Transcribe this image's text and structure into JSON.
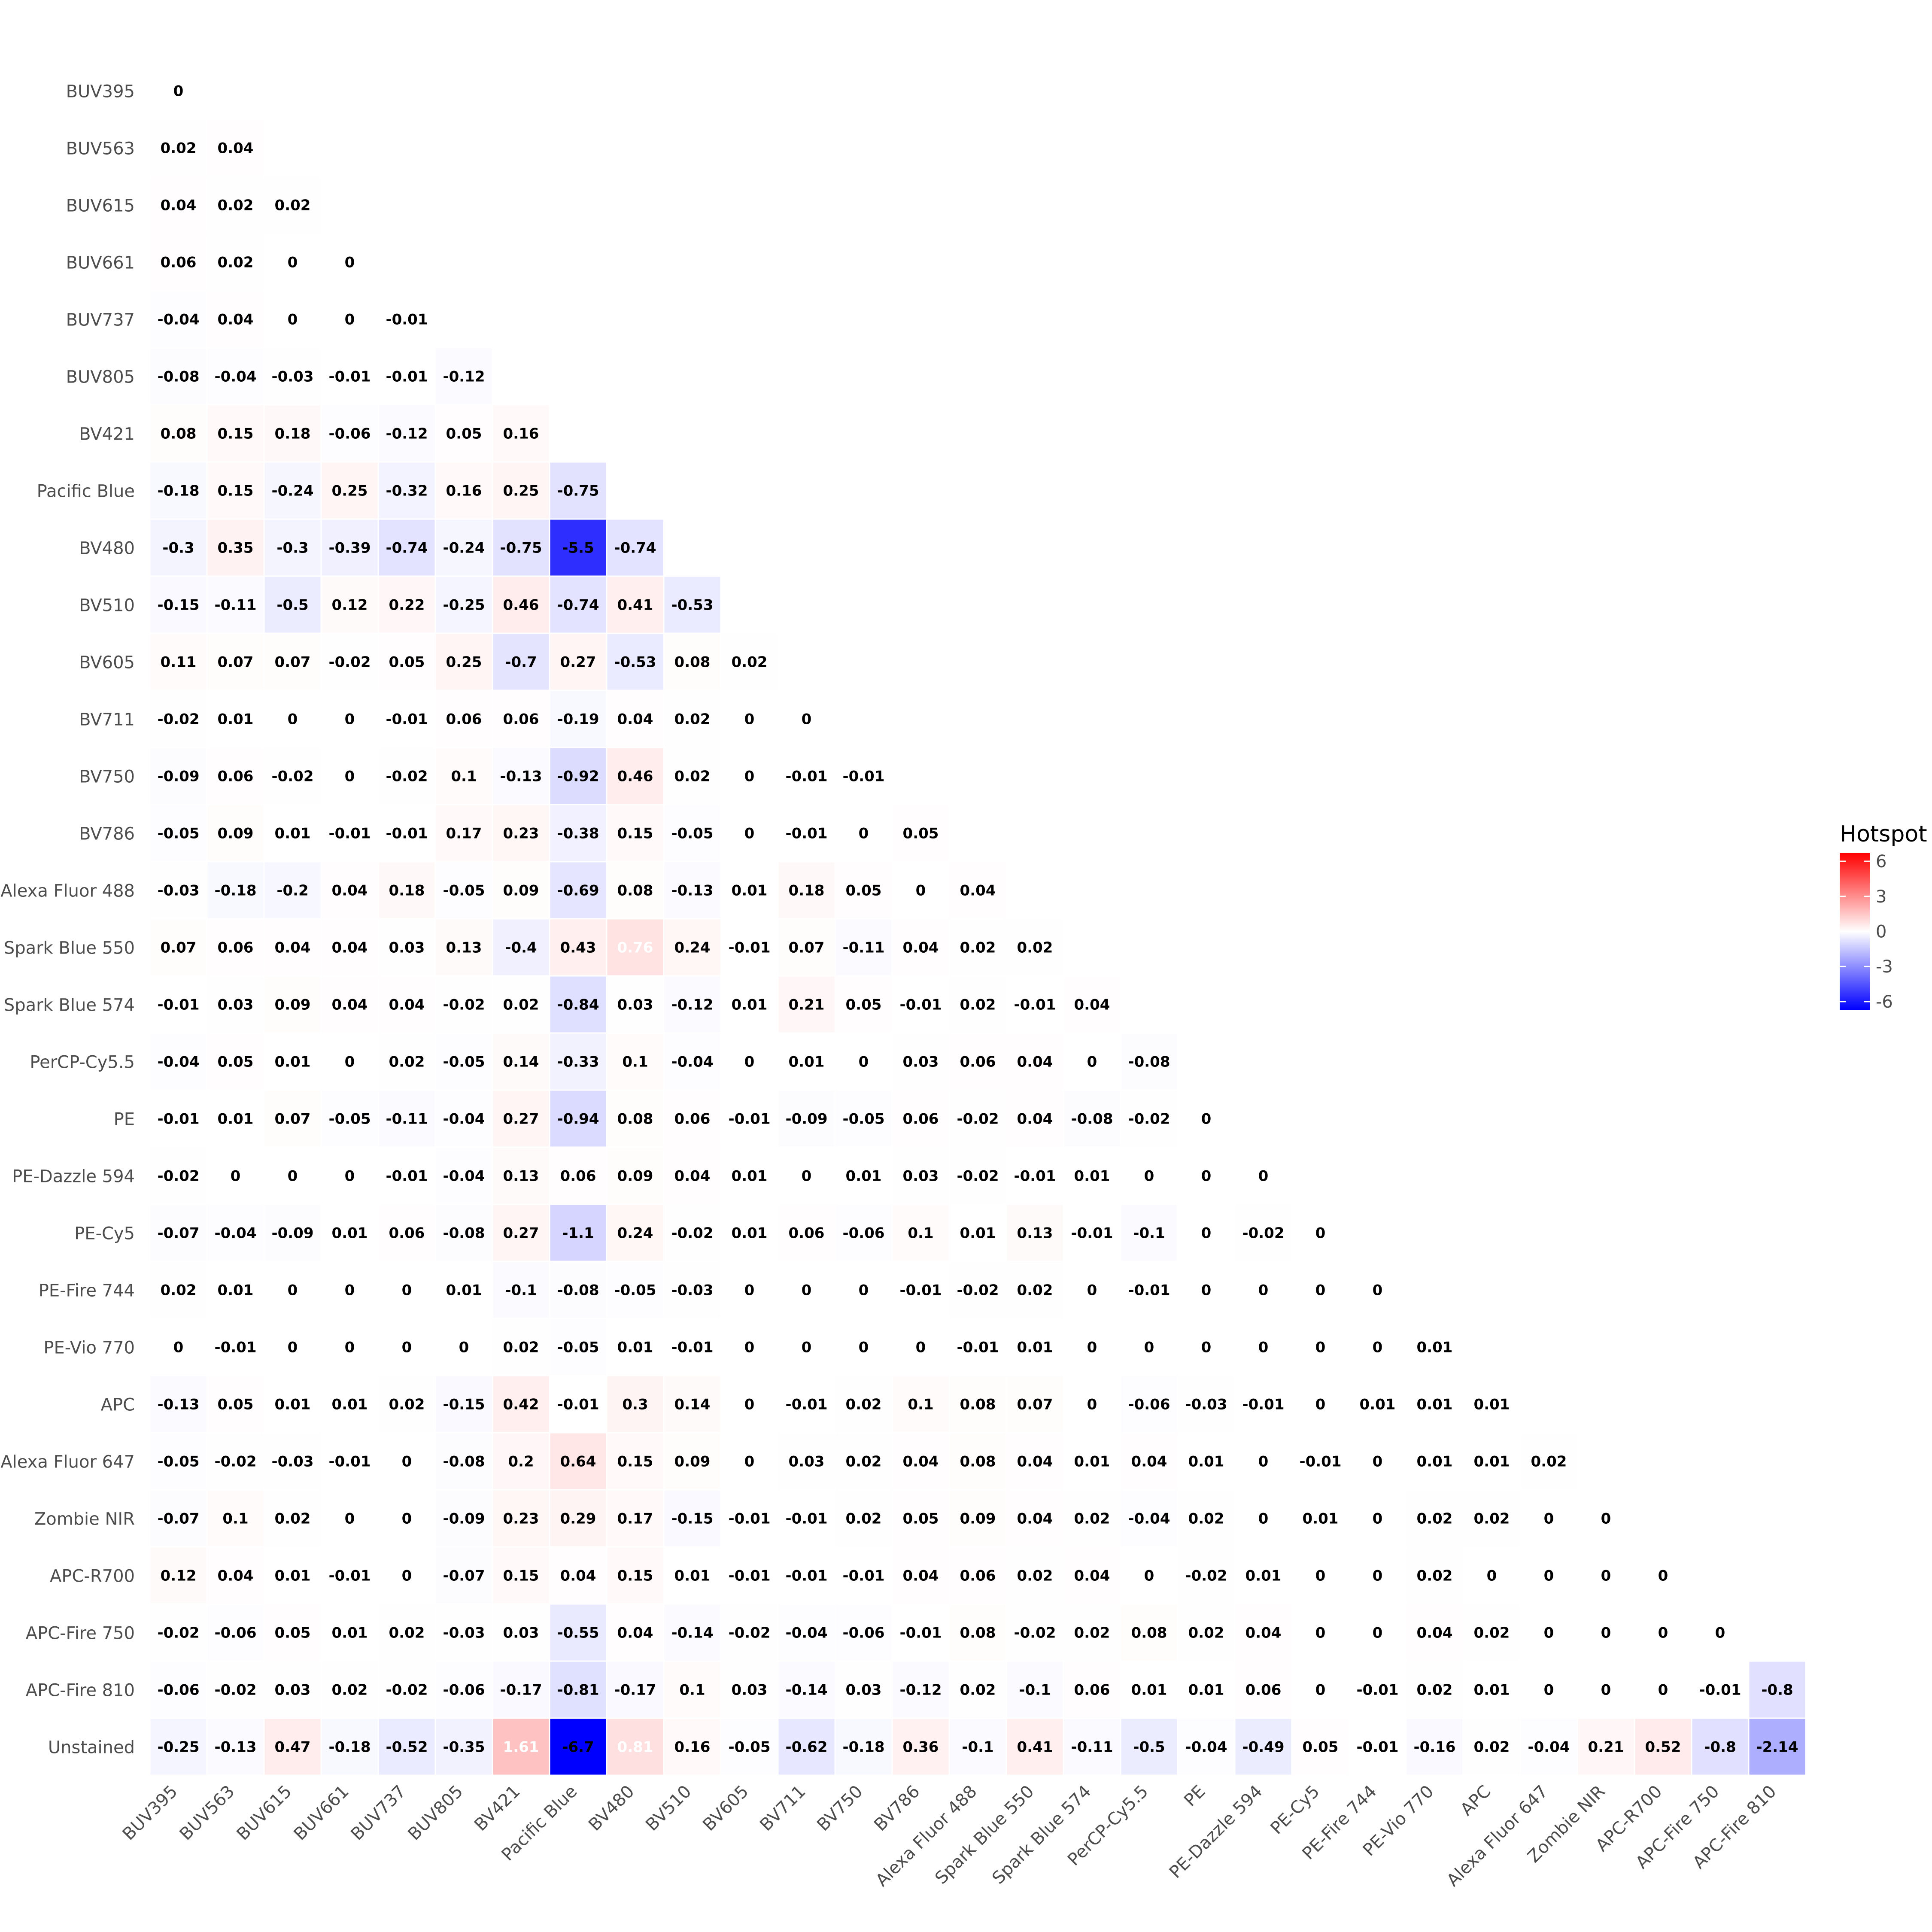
{
  "chart_data": {
    "type": "heatmap",
    "title": "",
    "xlabel": "",
    "ylabel": "",
    "labels": [
      "BUV395",
      "BUV563",
      "BUV615",
      "BUV661",
      "BUV737",
      "BUV805",
      "BV421",
      "Pacific Blue",
      "BV480",
      "BV510",
      "BV605",
      "BV711",
      "BV750",
      "BV786",
      "Alexa Fluor 488",
      "Spark Blue 550",
      "Spark Blue 574",
      "PerCP-Cy5.5",
      "PE",
      "PE-Dazzle 594",
      "PE-Cy5",
      "PE-Fire 744",
      "PE-Vio 770",
      "APC",
      "Alexa Fluor 647",
      "Zombie NIR",
      "APC-R700",
      "APC-Fire 750",
      "APC-Fire 810",
      "Unstained"
    ],
    "x_labels": [
      "BUV395",
      "BUV563",
      "BUV615",
      "BUV661",
      "BUV737",
      "BUV805",
      "BV421",
      "Pacific Blue",
      "BV480",
      "BV510",
      "BV605",
      "BV711",
      "BV750",
      "BV786",
      "Alexa Fluor 488",
      "Spark Blue 550",
      "Spark Blue 574",
      "PerCP-Cy5.5",
      "PE",
      "PE-Dazzle 594",
      "PE-Cy5",
      "PE-Fire 744",
      "PE-Vio 770",
      "APC",
      "Alexa Fluor 647",
      "Zombie NIR",
      "APC-R700",
      "APC-Fire 750",
      "APC-Fire 810"
    ],
    "values": [
      [
        0
      ],
      [
        0.02,
        0.04
      ],
      [
        0.04,
        0.02,
        0.02
      ],
      [
        0.06,
        0.02,
        0,
        0
      ],
      [
        -0.04,
        0.04,
        0,
        0,
        -0.01
      ],
      [
        -0.08,
        -0.04,
        -0.03,
        -0.01,
        -0.01,
        -0.12
      ],
      [
        0.08,
        0.15,
        0.18,
        -0.06,
        -0.12,
        0.05,
        0.16
      ],
      [
        -0.18,
        0.15,
        -0.24,
        0.25,
        -0.32,
        0.16,
        0.25,
        -0.75
      ],
      [
        -0.3,
        0.35,
        -0.3,
        -0.39,
        -0.74,
        -0.24,
        -0.75,
        -5.5,
        -0.74
      ],
      [
        -0.15,
        -0.11,
        -0.5,
        0.12,
        0.22,
        -0.25,
        0.46,
        -0.74,
        0.41,
        -0.53
      ],
      [
        0.11,
        0.07,
        0.07,
        -0.02,
        0.05,
        0.25,
        -0.7,
        0.27,
        -0.53,
        0.08,
        0.02
      ],
      [
        -0.02,
        0.01,
        0,
        0,
        -0.01,
        0.06,
        0.06,
        -0.19,
        0.04,
        0.02,
        0,
        0
      ],
      [
        -0.09,
        0.06,
        -0.02,
        0,
        -0.02,
        0.1,
        -0.13,
        -0.92,
        0.46,
        0.02,
        0,
        -0.01,
        -0.01
      ],
      [
        -0.05,
        0.09,
        0.01,
        -0.01,
        -0.01,
        0.17,
        0.23,
        -0.38,
        0.15,
        -0.05,
        0,
        -0.01,
        0,
        0.05
      ],
      [
        -0.03,
        -0.18,
        -0.2,
        0.04,
        0.18,
        -0.05,
        0.09,
        -0.69,
        0.08,
        -0.13,
        0.01,
        0.18,
        0.05,
        0,
        0.04
      ],
      [
        0.07,
        0.06,
        0.04,
        0.04,
        0.03,
        0.13,
        -0.4,
        0.43,
        0.76,
        0.24,
        -0.01,
        0.07,
        -0.11,
        0.04,
        0.02,
        0.02
      ],
      [
        -0.01,
        0.03,
        0.09,
        0.04,
        0.04,
        -0.02,
        0.02,
        -0.84,
        0.03,
        -0.12,
        0.01,
        0.21,
        0.05,
        -0.01,
        0.02,
        -0.01,
        0.04
      ],
      [
        -0.04,
        0.05,
        0.01,
        0,
        0.02,
        -0.05,
        0.14,
        -0.33,
        0.1,
        -0.04,
        0,
        0.01,
        0,
        0.03,
        0.06,
        0.04,
        0,
        -0.08
      ],
      [
        -0.01,
        0.01,
        0.07,
        -0.05,
        -0.11,
        -0.04,
        0.27,
        -0.94,
        0.08,
        0.06,
        -0.01,
        -0.09,
        -0.05,
        0.06,
        -0.02,
        0.04,
        -0.08,
        -0.02,
        0
      ],
      [
        -0.02,
        0,
        0,
        0,
        -0.01,
        -0.04,
        0.13,
        0.06,
        0.09,
        0.04,
        0.01,
        0,
        0.01,
        0.03,
        -0.02,
        -0.01,
        0.01,
        0,
        0,
        0
      ],
      [
        -0.07,
        -0.04,
        -0.09,
        0.01,
        0.06,
        -0.08,
        0.27,
        -1.1,
        0.24,
        -0.02,
        0.01,
        0.06,
        -0.06,
        0.1,
        0.01,
        0.13,
        -0.01,
        -0.1,
        0,
        -0.02,
        0
      ],
      [
        0.02,
        0.01,
        0,
        0,
        0,
        0.01,
        -0.1,
        -0.08,
        -0.05,
        -0.03,
        0,
        0,
        0,
        -0.01,
        -0.02,
        0.02,
        0,
        -0.01,
        0,
        0,
        0,
        0
      ],
      [
        0,
        -0.01,
        0,
        0,
        0,
        0,
        0.02,
        -0.05,
        0.01,
        -0.01,
        0,
        0,
        0,
        0,
        -0.01,
        0.01,
        0,
        0,
        0,
        0,
        0,
        0,
        0.01
      ],
      [
        -0.13,
        0.05,
        0.01,
        0.01,
        0.02,
        -0.15,
        0.42,
        -0.01,
        0.3,
        0.14,
        0,
        -0.01,
        0.02,
        0.1,
        0.08,
        0.07,
        0,
        -0.06,
        -0.03,
        -0.01,
        0,
        0.01,
        0.01,
        0.01
      ],
      [
        -0.05,
        -0.02,
        -0.03,
        -0.01,
        0,
        -0.08,
        0.2,
        0.64,
        0.15,
        0.09,
        0,
        0.03,
        0.02,
        0.04,
        0.08,
        0.04,
        0.01,
        0.04,
        0.01,
        0,
        -0.01,
        0,
        0.01,
        0.01,
        0.02
      ],
      [
        -0.07,
        0.1,
        0.02,
        0,
        0,
        -0.09,
        0.23,
        0.29,
        0.17,
        -0.15,
        -0.01,
        -0.01,
        0.02,
        0.05,
        0.09,
        0.04,
        0.02,
        -0.04,
        0.02,
        0,
        0.01,
        0,
        0.02,
        0.02,
        0,
        0
      ],
      [
        0.12,
        0.04,
        0.01,
        -0.01,
        0,
        -0.07,
        0.15,
        0.04,
        0.15,
        0.01,
        -0.01,
        -0.01,
        -0.01,
        0.04,
        0.06,
        0.02,
        0.04,
        0,
        -0.02,
        0.01,
        0,
        0,
        0.02,
        0,
        0,
        0,
        0
      ],
      [
        -0.02,
        -0.06,
        0.05,
        0.01,
        0.02,
        -0.03,
        0.03,
        -0.55,
        0.04,
        -0.14,
        -0.02,
        -0.04,
        -0.06,
        -0.01,
        0.08,
        -0.02,
        0.02,
        0.08,
        0.02,
        0.04,
        0,
        0,
        0.04,
        0.02,
        0,
        0,
        0,
        0
      ],
      [
        -0.06,
        -0.02,
        0.03,
        0.02,
        -0.02,
        -0.06,
        -0.17,
        -0.81,
        -0.17,
        0.1,
        0.03,
        -0.14,
        0.03,
        -0.12,
        0.02,
        -0.1,
        0.06,
        0.01,
        0.01,
        0.06,
        0,
        -0.01,
        0.02,
        0.01,
        0,
        0,
        0,
        -0.01,
        -0.8
      ],
      [
        -0.25,
        -0.13,
        0.47,
        -0.18,
        -0.52,
        -0.35,
        1.61,
        -6.7,
        0.81,
        0.16,
        -0.05,
        -0.62,
        -0.18,
        0.36,
        -0.1,
        0.41,
        -0.11,
        -0.5,
        -0.04,
        -0.49,
        0.05,
        -0.01,
        -0.16,
        0.02,
        -0.04,
        0.21,
        0.52,
        -0.8,
        -2.14
      ]
    ],
    "legend": {
      "title": "Hotspot",
      "placement": "right",
      "ticks": [
        6,
        3,
        0,
        -3,
        -6
      ],
      "tick_labels": [
        "6",
        "3",
        "0",
        "-3",
        "-6"
      ],
      "range": [
        -6.7,
        6.7
      ],
      "colors": {
        "low": "#0000ff",
        "mid": "#ffffff",
        "high": "#ff0000"
      }
    }
  }
}
